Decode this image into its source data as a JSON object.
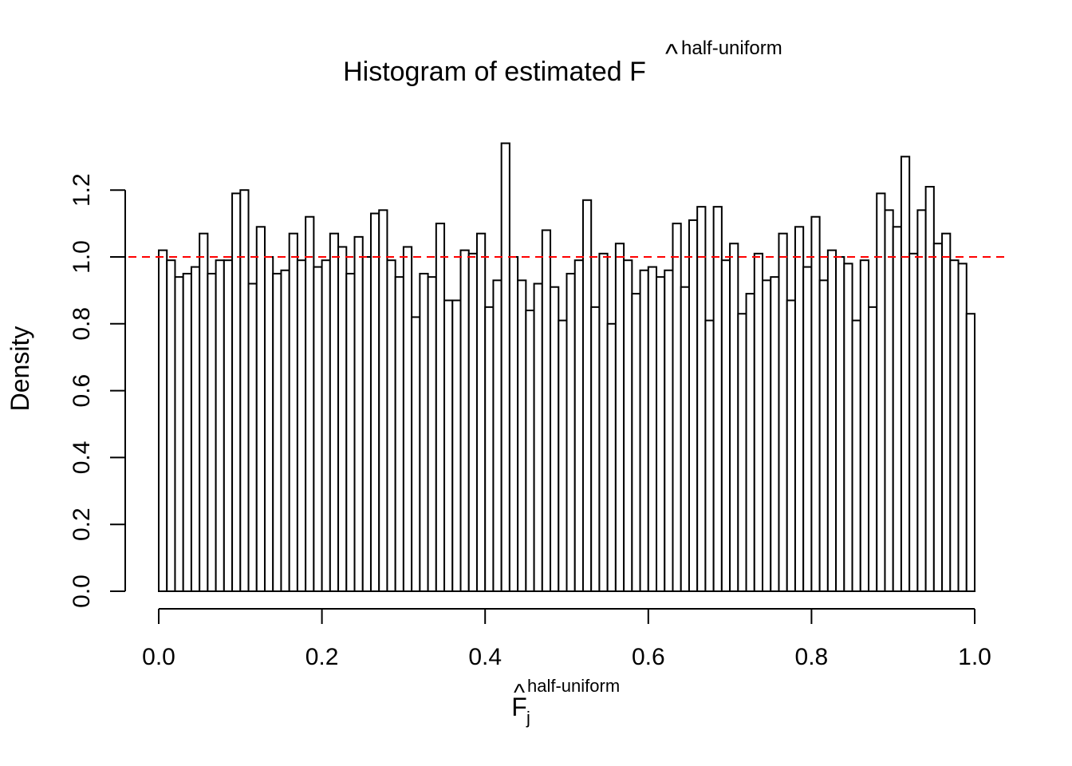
{
  "chart_data": {
    "type": "bar",
    "title": {
      "text": "Histogram of estimated F",
      "hat_symbol": "^",
      "superscript": "half-uniform"
    },
    "xlabel": {
      "text": "F",
      "hat_symbol": "^",
      "superscript": "half-uniform",
      "subscript": "j"
    },
    "ylabel": "Density",
    "xlim": [
      0,
      1
    ],
    "ylim": [
      0,
      1.35
    ],
    "x_ticks": [
      "0.0",
      "0.2",
      "0.4",
      "0.6",
      "0.8",
      "1.0"
    ],
    "y_ticks": [
      "0.0",
      "0.2",
      "0.4",
      "0.6",
      "0.8",
      "1.0",
      "1.2"
    ],
    "bin_width": 0.01,
    "reference_line": {
      "y": 1,
      "color": "#ff0000",
      "style": "dashed"
    },
    "values": [
      1.02,
      0.99,
      0.94,
      0.95,
      0.97,
      1.07,
      0.95,
      0.99,
      0.99,
      1.19,
      1.2,
      0.92,
      1.09,
      1.0,
      0.95,
      0.96,
      1.07,
      0.99,
      1.12,
      0.97,
      0.99,
      1.07,
      1.03,
      0.95,
      1.06,
      1.0,
      1.13,
      1.14,
      0.99,
      0.94,
      1.03,
      0.82,
      0.95,
      0.94,
      1.1,
      0.87,
      0.87,
      1.02,
      1.01,
      1.07,
      0.85,
      0.93,
      1.34,
      1.0,
      0.93,
      0.84,
      0.92,
      1.08,
      0.91,
      0.81,
      0.95,
      0.99,
      1.17,
      0.85,
      1.01,
      0.8,
      1.04,
      0.99,
      0.89,
      0.96,
      0.97,
      0.94,
      0.96,
      1.1,
      0.91,
      1.11,
      1.15,
      0.81,
      1.15,
      0.99,
      1.04,
      0.83,
      0.89,
      1.01,
      0.93,
      0.94,
      1.07,
      0.87,
      1.09,
      0.97,
      1.12,
      0.93,
      1.02,
      1.0,
      0.98,
      0.81,
      0.99,
      0.85,
      1.19,
      1.14,
      1.09,
      1.3,
      1.01,
      1.14,
      1.21,
      1.04,
      1.07,
      0.99,
      0.98,
      0.83
    ]
  }
}
